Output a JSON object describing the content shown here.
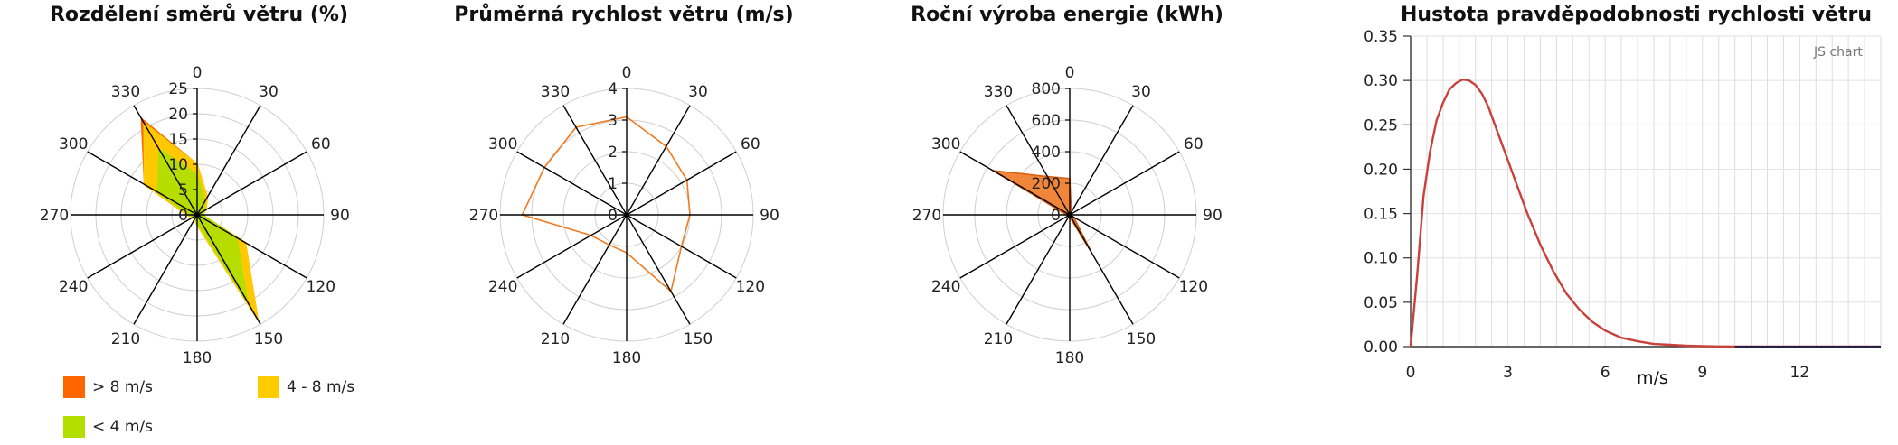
{
  "colors": {
    "orange": "#ff6600",
    "yellow": "#ffcc00",
    "green": "#b3de00",
    "line_orange": "#f07a1e",
    "fill_orange": "#f08030",
    "pdf_line": "#c9413a",
    "axis": "#000000",
    "grid": "#cfcfcf"
  },
  "chart_data": [
    {
      "type": "radar",
      "title": "Rozdělení směrů větru (%)",
      "angles": [
        "0",
        "30",
        "60",
        "90",
        "120",
        "150",
        "180",
        "210",
        "240",
        "270",
        "300",
        "330"
      ],
      "rticks": [
        "0",
        "5",
        "10",
        "15",
        "20",
        "25"
      ],
      "rmax": 25,
      "series": [
        {
          "name": "> 8 m/s",
          "values": [
            10,
            4,
            2,
            1,
            11,
            24,
            2,
            1,
            1,
            2,
            12,
            22
          ]
        },
        {
          "name": "4 - 8 m/s",
          "values": [
            10,
            4,
            2,
            1,
            11,
            24,
            2,
            1,
            1,
            2,
            12,
            21
          ]
        },
        {
          "name": "< 4 m/s",
          "values": [
            8,
            3,
            1.5,
            1,
            9,
            20,
            1.5,
            1,
            1,
            1.5,
            9,
            15
          ]
        }
      ]
    },
    {
      "type": "radar",
      "title": "Průměrná rychlost větru (m/s)",
      "angles": [
        "0",
        "30",
        "60",
        "90",
        "120",
        "150",
        "180",
        "210",
        "240",
        "270",
        "300",
        "330"
      ],
      "rticks": [
        "0",
        "1",
        "2",
        "3",
        "4"
      ],
      "rmax": 4,
      "series": [
        {
          "name": "",
          "values": [
            3.1,
            2.5,
            2.2,
            2.0,
            2.0,
            2.8,
            1.2,
            1.1,
            1.3,
            3.3,
            3.0,
            3.2
          ]
        }
      ]
    },
    {
      "type": "radar",
      "title": "Roční výroba energie (kWh)",
      "angles": [
        "0",
        "30",
        "60",
        "90",
        "120",
        "150",
        "180",
        "210",
        "240",
        "270",
        "300",
        "330"
      ],
      "rticks": [
        "0",
        "200",
        "400",
        "600",
        "800"
      ],
      "rmax": 800,
      "series": [
        {
          "name": "",
          "values": [
            230,
            20,
            10,
            5,
            30,
            270,
            15,
            5,
            5,
            20,
            560,
            280
          ]
        }
      ]
    },
    {
      "type": "line",
      "title": "Hustota pravděpodobnosti rychlosti větru",
      "xlabel": "m/s",
      "ylabel": "",
      "xlim": [
        0,
        14.5
      ],
      "ylim": [
        0,
        0.35
      ],
      "xticks": [
        "0",
        "3",
        "6",
        "9",
        "12"
      ],
      "yticks": [
        "0.00",
        "0.05",
        "0.10",
        "0.15",
        "0.20",
        "0.25",
        "0.30",
        "0.35"
      ],
      "x": [
        0,
        0.2,
        0.4,
        0.6,
        0.8,
        1.0,
        1.2,
        1.4,
        1.6,
        1.8,
        2.0,
        2.2,
        2.4,
        2.6,
        2.8,
        3.0,
        3.3,
        3.6,
        4.0,
        4.4,
        4.8,
        5.2,
        5.6,
        6.0,
        6.5,
        7.0,
        7.5,
        8.0,
        8.5,
        9.0,
        9.5,
        10.0,
        11.0,
        12.0,
        13.0,
        14.5
      ],
      "y": [
        0,
        0.08,
        0.17,
        0.22,
        0.255,
        0.275,
        0.29,
        0.297,
        0.301,
        0.3,
        0.295,
        0.285,
        0.27,
        0.25,
        0.23,
        0.21,
        0.18,
        0.15,
        0.115,
        0.085,
        0.06,
        0.042,
        0.028,
        0.018,
        0.01,
        0.006,
        0.003,
        0.002,
        0.001,
        0.0005,
        0.0002,
        0,
        0,
        0,
        0,
        0
      ]
    }
  ],
  "legend": [
    {
      "label": "> 8 m/s",
      "color": "#ff6600"
    },
    {
      "label": "4 - 8 m/s",
      "color": "#ffcc00"
    },
    {
      "label": "< 4 m/s",
      "color": "#b3de00"
    }
  ],
  "watermark": "JS chart"
}
